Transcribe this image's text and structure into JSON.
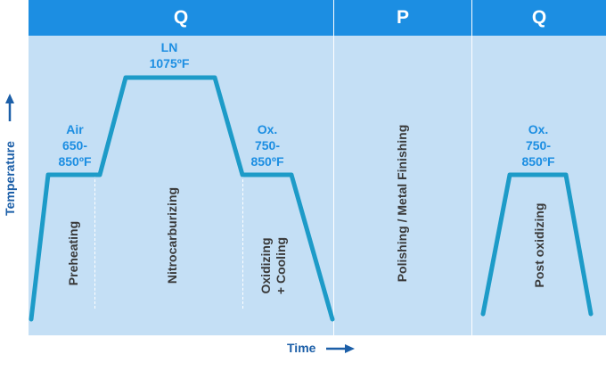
{
  "headers": {
    "q1": "Q",
    "p": "P",
    "q2": "Q"
  },
  "temps": {
    "air": [
      "Air",
      "650-",
      "850ºF"
    ],
    "ln": [
      "LN",
      "1075ºF"
    ],
    "ox1": [
      "Ox.",
      "750-",
      "850ºF"
    ],
    "ox2": [
      "Ox.",
      "750-",
      "850ºF"
    ]
  },
  "steps": {
    "preheating": "Preheating",
    "nitrocarburizing": "Nitrocarburizing",
    "oxidizing": [
      "Oxidizing",
      "+ Cooling"
    ],
    "polishing": "Polishing / Metal Finishing",
    "post_oxidizing": "Post oxidizing"
  },
  "axes": {
    "y": "Temperature",
    "x": "Time"
  },
  "colors": {
    "header": "#1c8ee2",
    "panel": "#c4dff5",
    "curve": "#1d9bc8",
    "text_blue": "#1c8ee2",
    "axis_blue": "#1c5fa8"
  }
}
